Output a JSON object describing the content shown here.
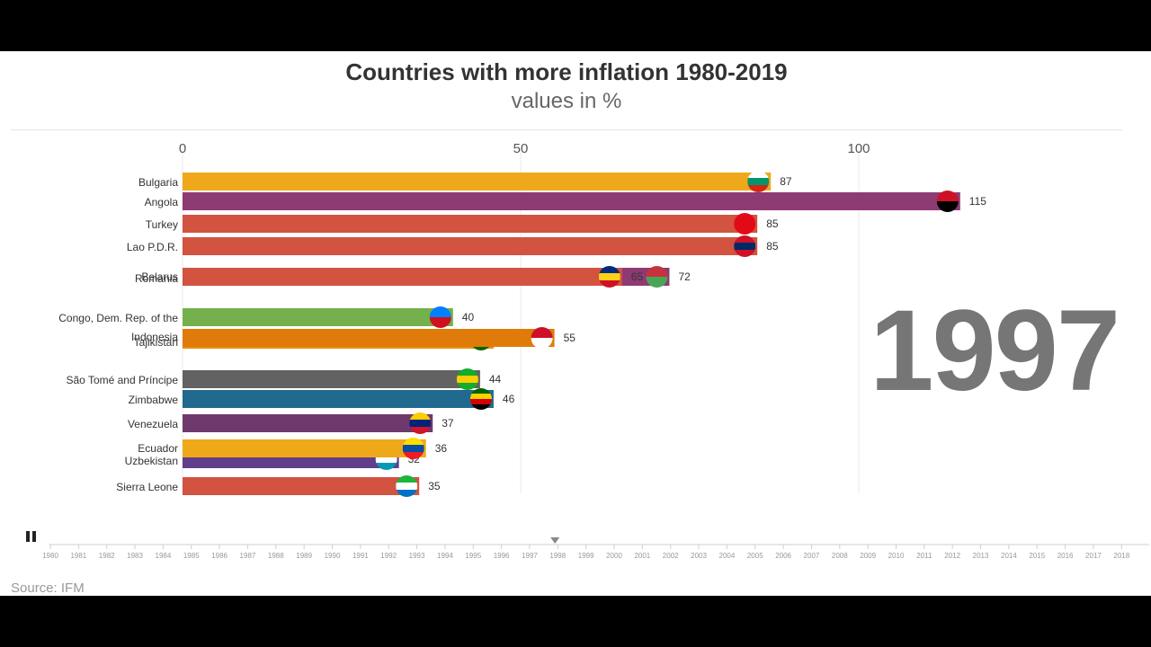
{
  "chart_data": {
    "type": "bar",
    "title": "Countries with more inflation 1980-2019",
    "subtitle": "values in %",
    "xlim": [
      0,
      130
    ],
    "x_ticks": [
      0,
      50,
      100
    ],
    "current_year": "1997",
    "timeline_years": [
      "1980",
      "1981",
      "1982",
      "1983",
      "1984",
      "1985",
      "1986",
      "1987",
      "1988",
      "1989",
      "1990",
      "1991",
      "1992",
      "1993",
      "1994",
      "1995",
      "1996",
      "1997",
      "1998",
      "1999",
      "2000",
      "2001",
      "2002",
      "2003",
      "2004",
      "2005",
      "2006",
      "2007",
      "2008",
      "2009",
      "2010",
      "2011",
      "2012",
      "2013",
      "2014",
      "2015",
      "2016",
      "2017",
      "2018"
    ],
    "bars": [
      {
        "name": "Bulgaria",
        "value": 87,
        "label": "87",
        "color": "#f0a81b",
        "flag": "bulgaria-flag"
      },
      {
        "name": "Angola",
        "value": 115,
        "label": "115",
        "color": "#8e3a73",
        "flag": "angola-flag"
      },
      {
        "name": "Turkey",
        "value": 85,
        "label": "85",
        "color": "#d25340",
        "flag": "turkey-flag"
      },
      {
        "name": "Lao P.D.R.",
        "value": 85,
        "label": "85",
        "color": "#d25340",
        "flag": "lao-flag"
      },
      {
        "name": "Belarus",
        "value": 72,
        "label": "72",
        "color": "#8e3a73",
        "flag": "belarus-flag"
      },
      {
        "name": "Romania",
        "value": 65,
        "label": "65",
        "color": "#d25340",
        "flag": "romania-flag"
      },
      {
        "name": "Congo, Dem. Rep. of the",
        "value": 40,
        "label": "40",
        "color": "#74b04b",
        "flag": "drc-flag"
      },
      {
        "name": "Tajikistan",
        "value": 46,
        "label": "",
        "color": "#e8900c",
        "flag": "tajikistan-flag"
      },
      {
        "name": "Indonesia",
        "value": 55,
        "label": "55",
        "color": "#e07b0a",
        "flag": "indonesia-flag"
      },
      {
        "name": "São Tomé and Príncipe",
        "value": 44,
        "label": "44",
        "color": "#626262",
        "flag": "sao-tome-flag"
      },
      {
        "name": "Zimbabwe",
        "value": 46,
        "label": "46",
        "color": "#21698f",
        "flag": "zimbabwe-flag"
      },
      {
        "name": "Venezuela",
        "value": 37,
        "label": "37",
        "color": "#6e3a6e",
        "flag": "venezuela-flag"
      },
      {
        "name": "Uzbekistan",
        "value": 32,
        "label": "32",
        "color": "#603e8a",
        "flag": "uzbekistan-flag"
      },
      {
        "name": "Ecuador",
        "value": 36,
        "label": "36",
        "color": "#f0a81b",
        "flag": "ecuador-flag"
      },
      {
        "name": "Sierra Leone",
        "value": 35,
        "label": "35",
        "color": "#d25340",
        "flag": "sierra-leone-flag"
      }
    ],
    "source": "Source: IFM"
  }
}
